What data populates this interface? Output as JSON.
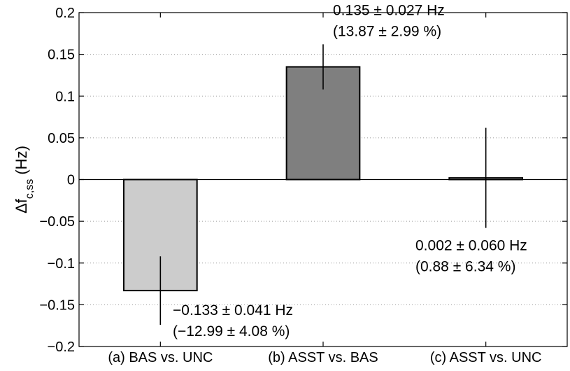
{
  "chart_data": {
    "type": "bar",
    "categories": [
      "(a) BAS vs. UNC",
      "(b) ASST vs. BAS",
      "(c) ASST vs. UNC"
    ],
    "values": [
      -0.133,
      0.135,
      0.002
    ],
    "errors": [
      0.041,
      0.027,
      0.06
    ],
    "bar_colors": [
      "#cccccc",
      "#7f7f7f",
      "#ffffff"
    ],
    "ylabel": {
      "main": "Δf",
      "subscript": "c,ss",
      "unit": "(Hz)"
    },
    "ylim": [
      -0.2,
      0.2
    ],
    "yticks": [
      -0.2,
      -0.15,
      -0.1,
      -0.05,
      0,
      0.05,
      0.1,
      0.15,
      0.2
    ],
    "ytick_labels": [
      "−0.2",
      "−0.15",
      "−0.1",
      "−0.05",
      "0",
      "0.05",
      "0.1",
      "0.15",
      "0.2"
    ],
    "grid": "horizontal-dotted",
    "annotations": [
      {
        "line1": "−0.133 ± 0.041 Hz",
        "line2": "(−12.99 ± 4.08 %)"
      },
      {
        "line1": "0.135 ± 0.027 Hz",
        "line2": "(13.87 ± 2.99 %)"
      },
      {
        "line1": "0.002 ± 0.060 Hz",
        "line2": "(0.88 ± 6.34 %)"
      }
    ]
  }
}
